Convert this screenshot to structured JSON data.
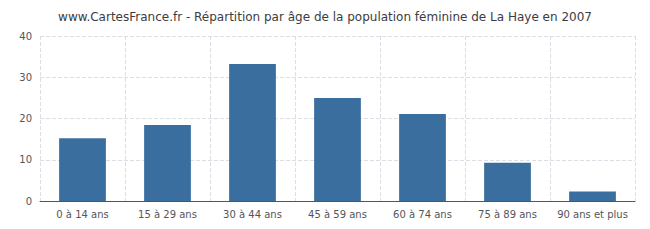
{
  "chart_data": {
    "type": "bar",
    "title": "www.CartesFrance.fr - Répartition par âge de la population féminine de La Haye en 2007",
    "categories": [
      "0 à 14 ans",
      "15 à 29 ans",
      "30 à 44 ans",
      "45 à 59 ans",
      "60 à 74 ans",
      "75 à 89 ans",
      "90 ans et plus"
    ],
    "values": [
      15.2,
      18.4,
      33.2,
      25.0,
      21.1,
      9.3,
      2.3
    ],
    "color": "#3a6e9f",
    "ylim": [
      0,
      40
    ],
    "yticks": [
      0,
      10,
      20,
      30,
      40
    ],
    "grid": true
  }
}
